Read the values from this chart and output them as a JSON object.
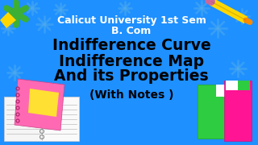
{
  "bg_color": "#1E90FF",
  "title_line1": "Calicut University 1st Sem",
  "title_line2": "B. Com",
  "main_line1": "Indifference Curve",
  "main_line2": "Indifference Map",
  "main_line3": "And its Properties",
  "sub_line": "(With Notes )",
  "title_color": "#FFFFFF",
  "main_color": "#000000",
  "sub_color": "#000000",
  "title_fontsize": 9.0,
  "main_fontsize": 13.5,
  "sub_fontsize": 10.0,
  "fig_width": 3.2,
  "fig_height": 1.8,
  "flower_color": "#4DAAEE",
  "pencil_yellow": "#FFD700",
  "pencil_orange": "#FF8C00",
  "pencil_dark": "#8B6914",
  "book_pink": "#FF69B4",
  "book_green": "#2ECC40",
  "book_yellow": "#FFE033",
  "star_green": "#3CB034",
  "star_yellow": "#FFD700"
}
